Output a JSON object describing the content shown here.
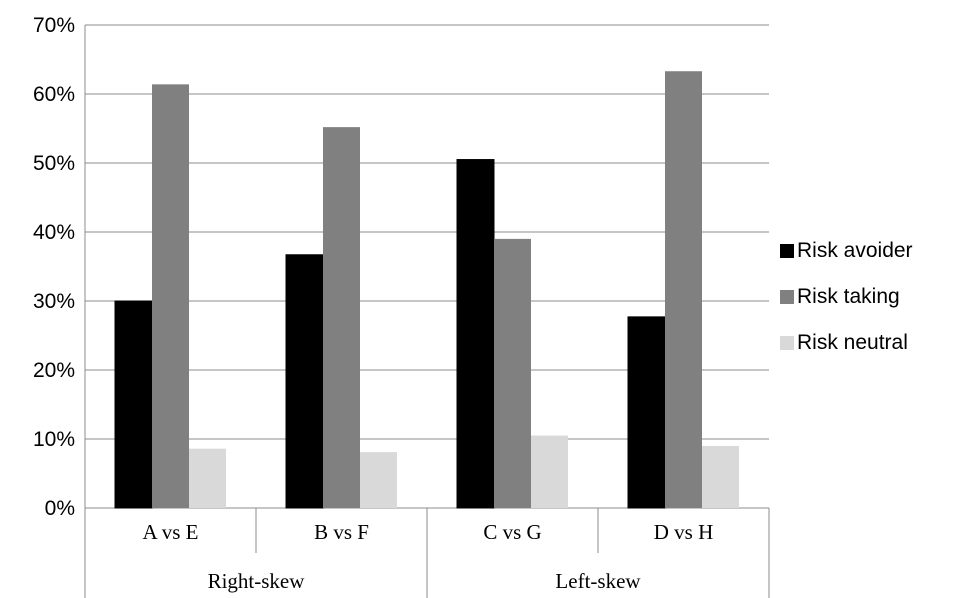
{
  "chart_data": {
    "type": "bar",
    "categories": [
      "A vs E",
      "B vs F",
      "C vs G",
      "D vs H"
    ],
    "groups": [
      {
        "label": "Right-skew",
        "categories": [
          "A vs E",
          "B vs F"
        ]
      },
      {
        "label": "Left-skew",
        "categories": [
          "C vs G",
          "D vs H"
        ]
      }
    ],
    "series": [
      {
        "name": "Risk avoider",
        "color": "#000000",
        "values": [
          30,
          36.7,
          50.5,
          27.7
        ]
      },
      {
        "name": "Risk taking",
        "color": "#808080",
        "values": [
          61.4,
          55.2,
          39,
          63.3
        ]
      },
      {
        "name": "Risk neutral",
        "color": "#d9d9d9",
        "values": [
          8.6,
          8.1,
          10.5,
          9.0
        ]
      }
    ],
    "ylim": [
      0,
      70
    ],
    "yticks": [
      0,
      10,
      20,
      30,
      40,
      50,
      60,
      70
    ],
    "ytick_labels": [
      "0%",
      "10%",
      "20%",
      "30%",
      "40%",
      "50%",
      "60%",
      "70%"
    ],
    "grid": true,
    "legend_position": "right",
    "title": "",
    "xlabel": "",
    "ylabel": ""
  }
}
